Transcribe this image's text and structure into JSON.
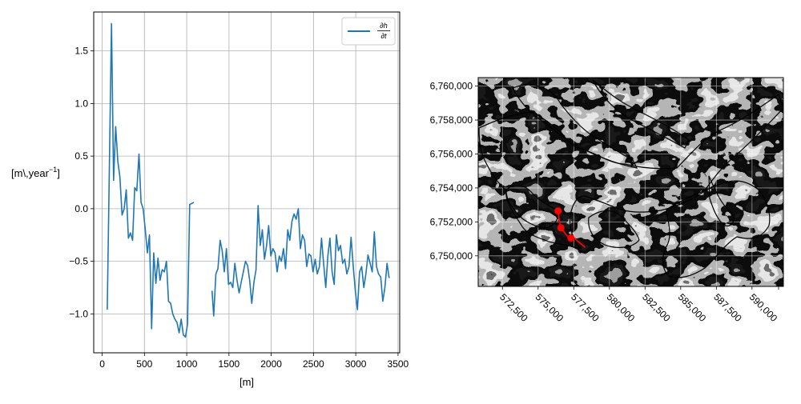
{
  "chart_data": [
    {
      "type": "line",
      "xlabel": "[m]",
      "ylabel": "[m\\,year",
      "ylabel_exp": "−1",
      "ylabel_close": "]",
      "xlim": [
        -100,
        3520
      ],
      "ylim": [
        -1.37,
        1.87
      ],
      "xticks": [
        0,
        500,
        1000,
        1500,
        2000,
        2500,
        3000,
        3500
      ],
      "xtick_labels": [
        "0",
        "500",
        "1000",
        "1500",
        "2000",
        "2500",
        "3000",
        "3500"
      ],
      "yticks": [
        -1.0,
        -0.5,
        0.0,
        0.5,
        1.0,
        1.5
      ],
      "ytick_labels": [
        "−1.0",
        "−0.5",
        "0.0",
        "0.5",
        "1.0",
        "1.5"
      ],
      "grid": true,
      "legend_position": "top-right",
      "series": [
        {
          "name": "∂h/∂t",
          "color": "#1f77b4",
          "segments": [
            {
              "x": [
                60,
                110,
                135,
                160,
                185,
                210,
                235,
                260,
                285,
                310,
                335,
                360,
                385,
                410,
                435,
                460,
                485,
                510,
                535,
                560,
                585,
                610,
                635,
                660,
                685,
                710,
                735,
                760,
                785,
                810,
                835,
                860,
                885,
                910,
                935,
                960,
                985,
                1010,
                1035,
                1060,
                1085
              ],
              "y": [
                -0.96,
                1.76,
                0.27,
                0.78,
                0.45,
                0.3,
                -0.06,
                0.0,
                0.18,
                -0.28,
                -0.23,
                -0.3,
                0.2,
                0.17,
                0.52,
                0.06,
                0.0,
                -0.2,
                -0.42,
                -0.25,
                -1.14,
                -0.42,
                -0.71,
                -0.47,
                -0.68,
                -0.58,
                -0.6,
                -0.5,
                -0.88,
                -0.9,
                -1.0,
                -1.05,
                -1.08,
                -1.18,
                -1.05,
                -1.2,
                -1.22,
                -1.1,
                0.04,
                0.05,
                0.06
              ]
            },
            {
              "x": [
                1300,
                1320,
                1345,
                1370,
                1395,
                1420,
                1445,
                1470,
                1495,
                1520,
                1545,
                1570,
                1595,
                1620,
                1645,
                1670,
                1695,
                1720,
                1745,
                1770,
                1795,
                1820,
                1845,
                1870,
                1895,
                1920,
                1945,
                1970,
                1995,
                2020,
                2045,
                2070,
                2095,
                2120,
                2145,
                2170,
                2195,
                2220,
                2245,
                2270,
                2295,
                2320,
                2345,
                2370,
                2395,
                2420,
                2445,
                2470,
                2495,
                2520,
                2545,
                2570,
                2595,
                2620,
                2645,
                2670,
                2695,
                2720,
                2745,
                2770,
                2795,
                2820,
                2845,
                2870,
                2895,
                2920,
                2945,
                2970,
                2995,
                3020,
                3045,
                3070,
                3095,
                3120,
                3145,
                3170,
                3195,
                3220,
                3245,
                3270,
                3295,
                3320,
                3345,
                3370,
                3395
              ],
              "y": [
                -0.78,
                -1.02,
                -0.62,
                -0.57,
                -0.3,
                -0.4,
                -0.6,
                -0.38,
                -0.72,
                -0.7,
                -0.75,
                -0.52,
                -0.68,
                -0.8,
                -0.7,
                -0.6,
                -0.5,
                -0.54,
                -0.68,
                -0.9,
                -0.7,
                -0.58,
                0.03,
                -0.35,
                -0.2,
                -0.48,
                -0.35,
                -0.16,
                -0.45,
                -0.38,
                -0.42,
                -0.6,
                -0.45,
                -0.5,
                -0.38,
                -0.57,
                -0.2,
                -0.3,
                -0.12,
                -0.05,
                -0.1,
                0.0,
                -0.38,
                -0.25,
                -0.3,
                -0.55,
                -0.43,
                -0.45,
                -0.6,
                -0.48,
                -0.62,
                -0.55,
                -0.28,
                -0.52,
                -0.75,
                -0.45,
                -0.28,
                -0.6,
                -0.72,
                -0.25,
                -0.4,
                -0.35,
                -0.52,
                -0.48,
                -0.62,
                -0.55,
                -0.27,
                -0.55,
                -0.78,
                -0.96,
                -0.6,
                -0.55,
                -0.75,
                -0.62,
                -0.44,
                -0.52,
                -0.6,
                -0.22,
                -0.55,
                -0.62,
                -0.65,
                -0.88,
                -0.75,
                -0.52,
                -0.66
              ]
            }
          ]
        }
      ]
    },
    {
      "type": "map",
      "background": "grayscale hillshade raster",
      "xlim": [
        570800,
        592200
      ],
      "ylim": [
        6748200,
        6760500
      ],
      "xticks": [
        572500,
        575000,
        577500,
        580000,
        582500,
        585000,
        587500,
        590000
      ],
      "xtick_labels": [
        "572,500",
        "575,000",
        "577,500",
        "580,000",
        "582,500",
        "585,000",
        "587,500",
        "590,000"
      ],
      "yticks": [
        6750000,
        6752000,
        6754000,
        6756000,
        6758000,
        6760000
      ],
      "ytick_labels": [
        "6,750,000",
        "6,752,000",
        "6,754,000",
        "6,756,000",
        "6,758,000",
        "6,760,000"
      ],
      "xtick_rotation": -45,
      "grid": true,
      "outline_color": "#000000",
      "flowline": {
        "color": "#ff0000",
        "points": [
          [
            576400,
            6752650
          ],
          [
            576500,
            6751950
          ],
          [
            576650,
            6751600
          ],
          [
            577000,
            6751200
          ],
          [
            577600,
            6751000
          ],
          [
            578300,
            6750500
          ]
        ],
        "markers": [
          [
            576400,
            6752650
          ],
          [
            576600,
            6751650
          ],
          [
            577300,
            6751050
          ]
        ]
      }
    }
  ]
}
